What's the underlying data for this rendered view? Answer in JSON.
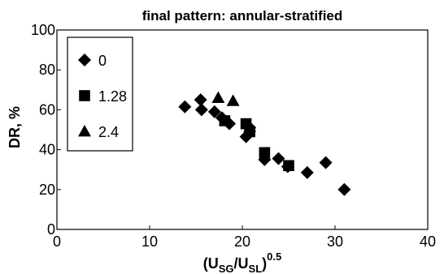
{
  "chart_data": {
    "type": "scatter",
    "title": "final pattern: annular-stratified",
    "xlabel": {
      "base": "(U",
      "sub1": "SG",
      "mid": "/U",
      "sub2": "SL",
      "close": ")",
      "sup": "0.5"
    },
    "ylabel": "DR, %",
    "xlim": [
      0,
      40
    ],
    "ylim": [
      0,
      100
    ],
    "xticks": [
      "0",
      "10",
      "20",
      "30",
      "40"
    ],
    "yticks": [
      "0",
      "20",
      "40",
      "60",
      "80",
      "100"
    ],
    "grid": false,
    "legend_position": "top-left",
    "series": [
      {
        "name": "0",
        "marker": "diamond",
        "color": "#000000",
        "points": [
          [
            13.8,
            61.5
          ],
          [
            15.5,
            65
          ],
          [
            15.6,
            60
          ],
          [
            17,
            59
          ],
          [
            17.8,
            56
          ],
          [
            18.6,
            53
          ],
          [
            20.4,
            46.5
          ],
          [
            20.8,
            51
          ],
          [
            22.4,
            35
          ],
          [
            23.9,
            35.5
          ],
          [
            24.9,
            31.5
          ],
          [
            27,
            28.5
          ],
          [
            29,
            33.5
          ],
          [
            31,
            20
          ]
        ]
      },
      {
        "name": "1.28",
        "marker": "square",
        "color": "#000000",
        "points": [
          [
            18.1,
            54.5
          ],
          [
            20.4,
            53
          ],
          [
            20.8,
            49
          ],
          [
            22.4,
            38.5
          ],
          [
            25,
            32
          ]
        ]
      },
      {
        "name": "2.4",
        "marker": "triangle",
        "color": "#000000",
        "points": [
          [
            17.4,
            66
          ],
          [
            19,
            64.5
          ],
          [
            20.8,
            51.5
          ]
        ]
      }
    ]
  }
}
